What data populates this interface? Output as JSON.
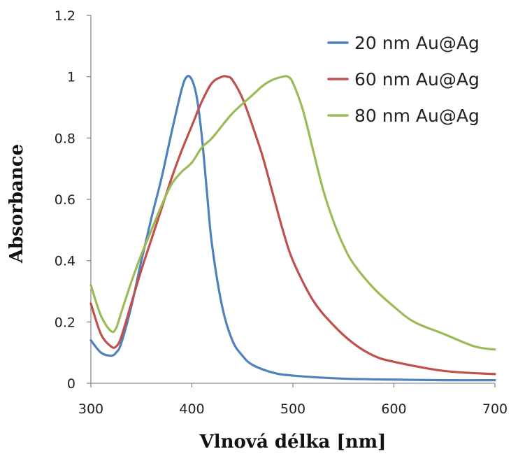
{
  "chart_data": {
    "type": "line",
    "xlabel": "Vlnová délka [nm]",
    "ylabel": "Absorbance",
    "xlim": [
      300,
      700
    ],
    "ylim": [
      0,
      1.2
    ],
    "x_ticks": [
      "300",
      "400",
      "500",
      "600",
      "700"
    ],
    "y_ticks": [
      "0",
      "0.2",
      "0.4",
      "0.6",
      "0.8",
      "1",
      "1.2"
    ],
    "grid": false,
    "legend_position": "top-right",
    "series": [
      {
        "name": "20 nm Au@Ag",
        "color": "#4f81bd",
        "x": [
          300,
          310,
          320,
          325,
          330,
          340,
          350,
          360,
          370,
          380,
          390,
          395,
          400,
          405,
          410,
          415,
          420,
          430,
          440,
          450,
          460,
          480,
          500,
          550,
          600,
          650,
          700
        ],
        "y": [
          0.14,
          0.1,
          0.09,
          0.1,
          0.13,
          0.25,
          0.4,
          0.54,
          0.67,
          0.82,
          0.96,
          1.0,
          0.99,
          0.93,
          0.8,
          0.62,
          0.45,
          0.25,
          0.14,
          0.09,
          0.06,
          0.035,
          0.025,
          0.015,
          0.012,
          0.01,
          0.01
        ]
      },
      {
        "name": "60 nm Au@Ag",
        "color": "#c0504d",
        "x": [
          300,
          310,
          320,
          325,
          330,
          340,
          350,
          360,
          370,
          380,
          390,
          400,
          410,
          420,
          430,
          435,
          440,
          450,
          460,
          470,
          480,
          490,
          500,
          520,
          540,
          560,
          580,
          600,
          650,
          700
        ],
        "y": [
          0.26,
          0.16,
          0.12,
          0.12,
          0.15,
          0.26,
          0.37,
          0.47,
          0.57,
          0.67,
          0.76,
          0.84,
          0.92,
          0.98,
          1.0,
          1.0,
          0.99,
          0.93,
          0.84,
          0.74,
          0.62,
          0.5,
          0.4,
          0.27,
          0.19,
          0.13,
          0.09,
          0.07,
          0.04,
          0.03
        ]
      },
      {
        "name": "80 nm Au@Ag",
        "color": "#9bbb59",
        "x": [
          300,
          310,
          320,
          325,
          330,
          340,
          350,
          360,
          370,
          380,
          390,
          400,
          410,
          420,
          440,
          460,
          470,
          480,
          490,
          495,
          500,
          510,
          520,
          530,
          540,
          550,
          560,
          580,
          600,
          620,
          650,
          680,
          700
        ],
        "y": [
          0.32,
          0.22,
          0.17,
          0.18,
          0.23,
          0.33,
          0.42,
          0.5,
          0.58,
          0.65,
          0.69,
          0.72,
          0.77,
          0.8,
          0.88,
          0.94,
          0.97,
          0.99,
          1.0,
          1.0,
          0.98,
          0.89,
          0.76,
          0.63,
          0.53,
          0.45,
          0.39,
          0.31,
          0.25,
          0.2,
          0.16,
          0.12,
          0.11
        ]
      }
    ]
  }
}
